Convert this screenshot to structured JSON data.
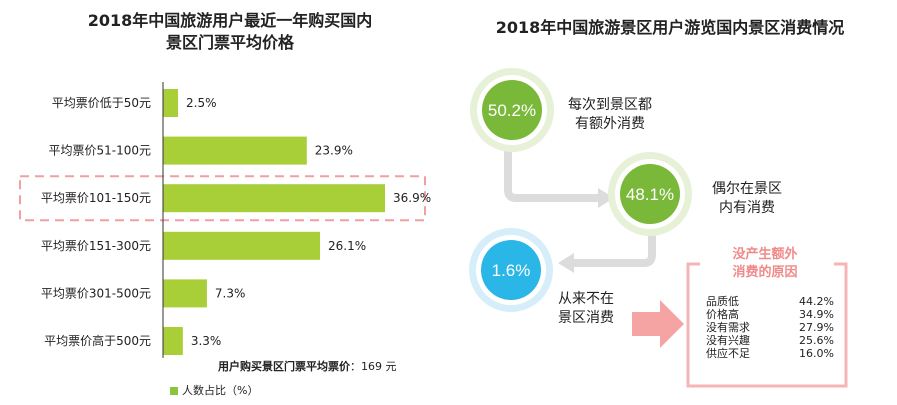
{
  "left": {
    "title_line1": "2018年中国旅游用户最近一年购买国内",
    "title_line2": "景区门票平均价格",
    "avg_label": "用户购买景区门票平均票价",
    "avg_value": "：169 元",
    "legend": "人数占比（%）"
  },
  "right": {
    "title": "2018年中国旅游景区用户游览国内景区消费情况",
    "bubble1": {
      "value": "50.2%",
      "text_line1": "每次到景区都",
      "text_line2": "有额外消费"
    },
    "bubble2": {
      "value": "48.1%",
      "text_line1": "偶尔在景区",
      "text_line2": "内有消费"
    },
    "bubble3": {
      "value": "1.6%",
      "text_line1": "从来不在",
      "text_line2": "景区消费"
    },
    "reasons_title_line1": "没产生额外",
    "reasons_title_line2": "消费的原因",
    "reasons": [
      {
        "label": "品质低",
        "value": "44.2%"
      },
      {
        "label": "价格高",
        "value": "34.9%"
      },
      {
        "label": "没有需求",
        "value": "27.9%"
      },
      {
        "label": "没有兴趣",
        "value": "25.6%"
      },
      {
        "label": "供应不足",
        "value": "16.0%"
      }
    ]
  },
  "colors": {
    "bar_green": "#a9cf38",
    "bubble_green": "#7ab83a",
    "bubble_blue": "#2bb6e8",
    "highlight_pink": "#f0a0a0",
    "arrow_gray": "#dcdcdc"
  },
  "chart_data": [
    {
      "type": "bar",
      "orientation": "horizontal",
      "title": "2018年中国旅游用户最近一年购买国内景区门票平均价格",
      "categories": [
        "平均票价低于50元",
        "平均票价51-100元",
        "平均票价101-150元",
        "平均票价151-300元",
        "平均票价301-500元",
        "平均票价高于500元"
      ],
      "values": [
        2.5,
        23.9,
        36.9,
        26.1,
        7.3,
        3.3
      ],
      "value_labels": [
        "2.5%",
        "23.9%",
        "36.9%",
        "26.1%",
        "7.3%",
        "3.3%"
      ],
      "highlighted_category": "平均票价101-150元",
      "legend": "人数占比（%）",
      "legend_position": "bottom-left",
      "grid": false
    },
    {
      "type": "table",
      "title": "没产生额外消费的原因",
      "rows": [
        [
          "品质低",
          "44.2%"
        ],
        [
          "价格高",
          "34.9%"
        ],
        [
          "没有需求",
          "27.9%"
        ],
        [
          "没有兴趣",
          "25.6%"
        ],
        [
          "供应不足",
          "16.0%"
        ]
      ]
    }
  ]
}
